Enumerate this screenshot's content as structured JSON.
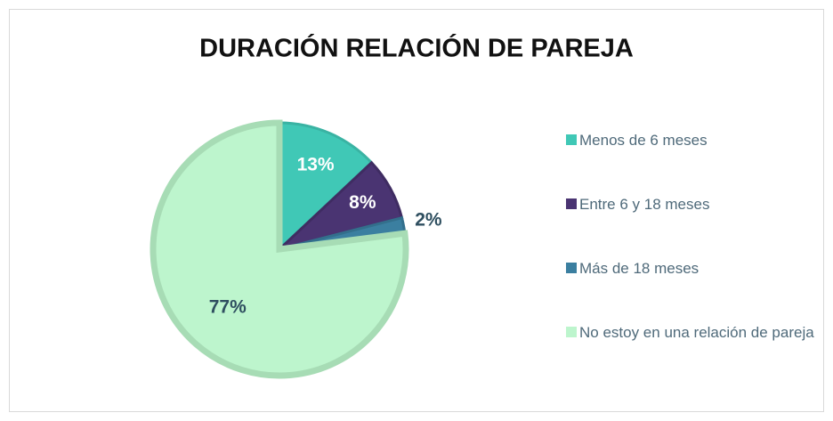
{
  "chart_data": {
    "type": "pie",
    "title": "DURACIÓN RELACIÓN DE PAREJA",
    "categories": [
      "Menos de 6 meses",
      "Entre 6 y 18 meses",
      "Más de 18 meses",
      "No estoy en una relación de pareja"
    ],
    "values": [
      13,
      8,
      2,
      77
    ],
    "value_labels": [
      "13%",
      "8%",
      "2%",
      "77%"
    ],
    "colors": [
      "#40c8b6",
      "#4a3472",
      "#3b7fa0",
      "#bdf5cd"
    ],
    "legend": "right"
  }
}
